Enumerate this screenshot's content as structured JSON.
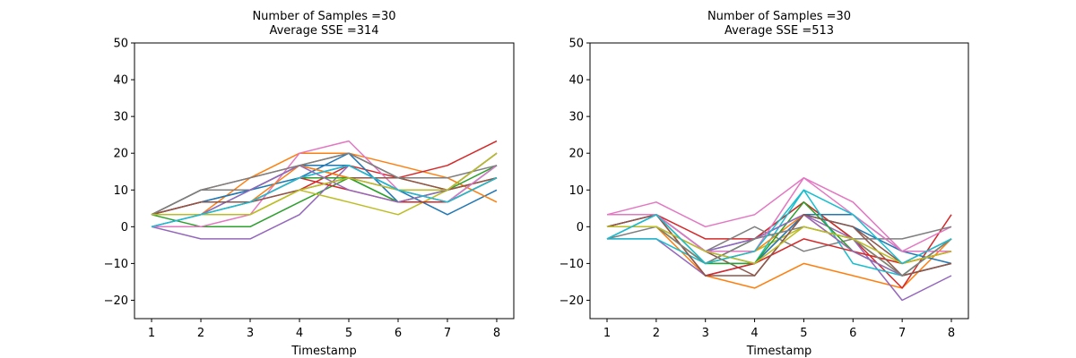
{
  "chart_data": [
    {
      "type": "line",
      "title": "Number of Samples =30\nAverage SSE =314",
      "title_lines": [
        "Number of Samples =30",
        "Average SSE =314"
      ],
      "xlabel": "Timestamp",
      "ylabel": "",
      "x": [
        1,
        2,
        3,
        4,
        5,
        6,
        7,
        8
      ],
      "xticks": [
        "1",
        "2",
        "3",
        "4",
        "5",
        "6",
        "7",
        "8"
      ],
      "yticks": [
        "−20",
        "−10",
        "0",
        "10",
        "20",
        "30",
        "40",
        "50"
      ],
      "ylim": [
        -25,
        50
      ],
      "grid": false,
      "series": [
        {
          "values": [
            3.3,
            6.7,
            10,
            16.7,
            16.7,
            10,
            3.3,
            10
          ],
          "color": "#1f77b4"
        },
        {
          "values": [
            3.3,
            3.3,
            13.3,
            20,
            20,
            16.7,
            13.3,
            6.7
          ],
          "color": "#ff7f0e"
        },
        {
          "values": [
            3.3,
            0,
            0,
            6.7,
            13.3,
            6.7,
            10,
            16.7
          ],
          "color": "#2ca02c"
        },
        {
          "values": [
            3.3,
            6.7,
            6.7,
            10,
            16.7,
            13.3,
            16.7,
            23.3
          ],
          "color": "#d62728"
        },
        {
          "values": [
            0,
            -3.3,
            -3.3,
            3.3,
            16.7,
            10,
            10,
            13.3
          ],
          "color": "#9467bd"
        },
        {
          "values": [
            3.3,
            10,
            13.3,
            16.7,
            13.3,
            10,
            6.7,
            13.3
          ],
          "color": "#8c564b"
        },
        {
          "values": [
            0,
            0,
            3.3,
            20,
            23.3,
            10,
            6.7,
            16.7
          ],
          "color": "#e377c2"
        },
        {
          "values": [
            3.3,
            10,
            10,
            16.7,
            20,
            13.3,
            10,
            20
          ],
          "color": "#7f7f7f"
        },
        {
          "values": [
            3.3,
            3.3,
            3.3,
            10,
            6.7,
            3.3,
            10,
            20
          ],
          "color": "#bcbd22"
        },
        {
          "values": [
            0,
            3.3,
            10,
            13.3,
            16.7,
            10,
            6.7,
            16.7
          ],
          "color": "#17becf"
        },
        {
          "values": [
            3.3,
            6.7,
            10,
            13.3,
            20,
            6.7,
            6.7,
            16.7
          ],
          "color": "#1f77b4"
        },
        {
          "values": [
            3.3,
            6.7,
            6.7,
            16.7,
            13.3,
            13.3,
            10,
            13.3
          ],
          "color": "#ff7f0e"
        },
        {
          "values": [
            3.3,
            3.3,
            6.7,
            13.3,
            13.3,
            6.7,
            10,
            20
          ],
          "color": "#2ca02c"
        },
        {
          "values": [
            3.3,
            6.7,
            6.7,
            13.3,
            10,
            6.7,
            6.7,
            13.3
          ],
          "color": "#d62728"
        },
        {
          "values": [
            0,
            3.3,
            10,
            16.7,
            10,
            6.7,
            10,
            20
          ],
          "color": "#9467bd"
        },
        {
          "values": [
            3.3,
            6.7,
            6.7,
            10,
            13.3,
            13.3,
            10,
            13.3
          ],
          "color": "#8c564b"
        },
        {
          "values": [
            3.3,
            3.3,
            6.7,
            13.3,
            16.7,
            10,
            6.7,
            16.7
          ],
          "color": "#e377c2"
        },
        {
          "values": [
            3.3,
            10,
            13.3,
            16.7,
            20,
            13.3,
            13.3,
            16.7
          ],
          "color": "#7f7f7f"
        },
        {
          "values": [
            3.3,
            3.3,
            3.3,
            10,
            13.3,
            10,
            10,
            20
          ],
          "color": "#bcbd22"
        },
        {
          "values": [
            0,
            3.3,
            6.7,
            13.3,
            16.7,
            10,
            6.7,
            13.3
          ],
          "color": "#17becf"
        }
      ]
    },
    {
      "type": "line",
      "title": "Number of Samples =30\nAverage SSE =513",
      "title_lines": [
        "Number of Samples =30",
        "Average SSE =513"
      ],
      "xlabel": "Timestamp",
      "ylabel": "",
      "x": [
        1,
        2,
        3,
        4,
        5,
        6,
        7,
        8
      ],
      "xticks": [
        "1",
        "2",
        "3",
        "4",
        "5",
        "6",
        "7",
        "8"
      ],
      "yticks": [
        "−20",
        "−10",
        "0",
        "10",
        "20",
        "30",
        "40",
        "50"
      ],
      "ylim": [
        -25,
        50
      ],
      "grid": false,
      "series": [
        {
          "values": [
            0,
            3.3,
            -6.7,
            -3.3,
            3.3,
            3.3,
            -6.7,
            -6.7
          ],
          "color": "#1f77b4"
        },
        {
          "values": [
            0,
            0,
            -13.3,
            -16.7,
            -10,
            -13.3,
            -16.7,
            -3.3
          ],
          "color": "#ff7f0e"
        },
        {
          "values": [
            3.3,
            3.3,
            -10,
            -3.3,
            6.7,
            -3.3,
            -13.3,
            -3.3
          ],
          "color": "#2ca02c"
        },
        {
          "values": [
            3.3,
            3.3,
            -3.3,
            -3.3,
            6.7,
            -3.3,
            -16.7,
            3.3
          ],
          "color": "#d62728"
        },
        {
          "values": [
            -3.3,
            -3.3,
            -13.3,
            -10,
            3.3,
            -3.3,
            -20,
            -13.3
          ],
          "color": "#9467bd"
        },
        {
          "values": [
            0,
            0,
            -6.7,
            -13.3,
            3.3,
            0,
            -10,
            -3.3
          ],
          "color": "#8c564b"
        },
        {
          "values": [
            3.3,
            6.7,
            0,
            3.3,
            13.3,
            6.7,
            -6.7,
            0
          ],
          "color": "#e377c2"
        },
        {
          "values": [
            0,
            3.3,
            -6.7,
            0,
            -6.7,
            -3.3,
            -3.3,
            0
          ],
          "color": "#7f7f7f"
        },
        {
          "values": [
            0,
            0,
            -10,
            -6.7,
            0,
            -3.3,
            -13.3,
            -3.3
          ],
          "color": "#bcbd22"
        },
        {
          "values": [
            -3.3,
            -3.3,
            -10,
            -10,
            10,
            -10,
            -13.3,
            -3.3
          ],
          "color": "#17becf"
        },
        {
          "values": [
            -3.3,
            3.3,
            -6.7,
            -10,
            3.3,
            0,
            -6.7,
            -10
          ],
          "color": "#1f77b4"
        },
        {
          "values": [
            0,
            0,
            -10,
            -6.7,
            3.3,
            -6.7,
            -10,
            -6.7
          ],
          "color": "#ff7f0e"
        },
        {
          "values": [
            0,
            0,
            -10,
            -10,
            6.7,
            -6.7,
            -13.3,
            -10
          ],
          "color": "#2ca02c"
        },
        {
          "values": [
            0,
            3.3,
            -13.3,
            -10,
            -3.3,
            -6.7,
            -10,
            -6.7
          ],
          "color": "#d62728"
        },
        {
          "values": [
            3.3,
            3.3,
            -6.7,
            -3.3,
            3.3,
            -6.7,
            -13.3,
            -10
          ],
          "color": "#9467bd"
        },
        {
          "values": [
            0,
            3.3,
            -13.3,
            -13.3,
            3.3,
            0,
            -13.3,
            -10
          ],
          "color": "#8c564b"
        },
        {
          "values": [
            3.3,
            3.3,
            -6.7,
            -6.7,
            13.3,
            3.3,
            -6.7,
            -6.7
          ],
          "color": "#e377c2"
        },
        {
          "values": [
            -3.3,
            0,
            -10,
            -3.3,
            0,
            -3.3,
            -13.3,
            -3.3
          ],
          "color": "#7f7f7f"
        },
        {
          "values": [
            0,
            0,
            -6.7,
            -10,
            0,
            -3.3,
            -10,
            -6.7
          ],
          "color": "#bcbd22"
        },
        {
          "values": [
            -3.3,
            3.3,
            -10,
            -6.7,
            10,
            3.3,
            -10,
            -3.3
          ],
          "color": "#17becf"
        }
      ]
    }
  ]
}
